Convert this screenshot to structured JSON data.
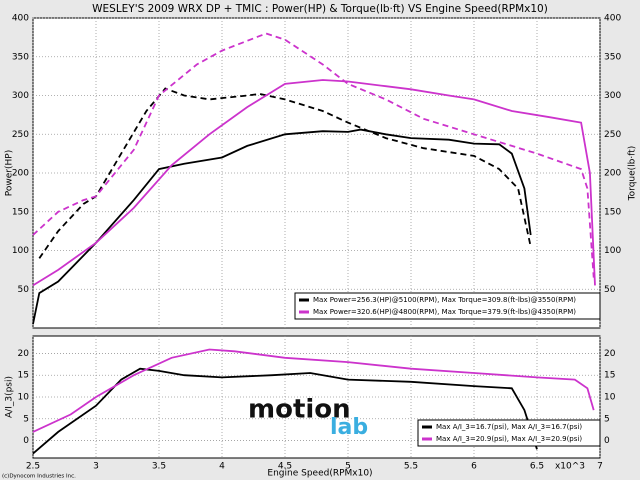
{
  "chart_data": [
    {
      "type": "line",
      "title": "WESLEY'S 2009 WRX DP + TMIC : Power(HP) & Torque(lb·ft) VS Engine Speed(RPMx10)",
      "ylabel": "Power(HP)",
      "y2label": "Torque(lb·ft)",
      "xlim": [
        2.5,
        7
      ],
      "xticks": [
        2.5,
        3,
        3.5,
        4,
        4.5,
        5,
        5.5,
        6,
        6.5,
        7
      ],
      "ylim": [
        0,
        400
      ],
      "yticks": [
        50,
        100,
        150,
        200,
        250,
        300,
        350,
        400
      ],
      "y2lim": [
        0,
        400
      ],
      "y2ticks": [
        50,
        100,
        150,
        200,
        250,
        300,
        350,
        400
      ],
      "grid": true,
      "legend": [
        {
          "label": "Max Power=256.3(HP)@5100(RPM), Max Torque=309.8(ft-lbs)@3550(RPM)",
          "color": "#000000"
        },
        {
          "label": "Max Power=320.6(HP)@4800(RPM), Max Torque=379.9(ft-lbs)@4350(RPM)",
          "color": "#cc33cc"
        }
      ],
      "series": [
        {
          "color": "#000000",
          "dash": false,
          "x": [
            2.5,
            2.55,
            2.7,
            3.0,
            3.3,
            3.5,
            3.7,
            4.0,
            4.2,
            4.5,
            4.8,
            5.0,
            5.1,
            5.3,
            5.5,
            5.8,
            6.0,
            6.2,
            6.3,
            6.4,
            6.45
          ],
          "values": [
            5,
            45,
            60,
            110,
            165,
            205,
            212,
            220,
            235,
            250,
            254,
            253,
            256,
            250,
            245,
            243,
            238,
            237,
            225,
            180,
            120
          ]
        },
        {
          "color": "#000000",
          "dash": true,
          "axis": "y2",
          "x": [
            2.55,
            2.7,
            2.9,
            3.0,
            3.2,
            3.4,
            3.55,
            3.7,
            3.9,
            4.2,
            4.3,
            4.5,
            4.8,
            5.0,
            5.3,
            5.6,
            6.0,
            6.2,
            6.35,
            6.45
          ],
          "values": [
            90,
            125,
            160,
            170,
            225,
            280,
            309,
            300,
            295,
            300,
            302,
            295,
            280,
            265,
            245,
            232,
            222,
            205,
            180,
            105
          ]
        },
        {
          "color": "#cc33cc",
          "dash": false,
          "x": [
            2.5,
            2.7,
            3.0,
            3.3,
            3.6,
            3.9,
            4.2,
            4.5,
            4.8,
            5.0,
            5.3,
            5.5,
            5.8,
            6.0,
            6.3,
            6.6,
            6.85,
            6.92,
            6.96
          ],
          "values": [
            55,
            75,
            110,
            155,
            210,
            250,
            285,
            315,
            320,
            318,
            312,
            308,
            300,
            295,
            280,
            272,
            265,
            200,
            55
          ]
        },
        {
          "color": "#cc33cc",
          "dash": true,
          "axis": "y2",
          "x": [
            2.5,
            2.7,
            2.9,
            3.0,
            3.3,
            3.5,
            3.8,
            4.0,
            4.35,
            4.5,
            4.8,
            5.0,
            5.3,
            5.6,
            6.0,
            6.5,
            6.85,
            6.9,
            6.95
          ],
          "values": [
            120,
            150,
            165,
            170,
            230,
            300,
            340,
            358,
            380,
            372,
            340,
            315,
            295,
            270,
            250,
            225,
            205,
            180,
            65
          ]
        }
      ]
    },
    {
      "type": "line",
      "ylabel": "A/I_3(psi)",
      "xlabel": "Engine Speed(RPMx10)",
      "xmultiplier": "x10^3",
      "xlim": [
        2.5,
        7
      ],
      "xticks": [
        2.5,
        3,
        3.5,
        4,
        4.5,
        5,
        5.5,
        6,
        6.5,
        7
      ],
      "ylim": [
        -4,
        24
      ],
      "yticks": [
        0,
        5,
        10,
        15,
        20
      ],
      "y2lim": [
        -4,
        24
      ],
      "y2ticks": [
        0,
        5,
        10,
        15,
        20
      ],
      "grid": true,
      "legend": [
        {
          "label": "Max A/I_3=16.7(psi), Max A/I_3=16.7(psi)",
          "color": "#000000"
        },
        {
          "label": "Max A/I_3=20.9(psi), Max A/I_3=20.9(psi)",
          "color": "#cc33cc"
        }
      ],
      "series": [
        {
          "color": "#000000",
          "dash": false,
          "x": [
            2.5,
            2.7,
            3.0,
            3.2,
            3.35,
            3.5,
            3.7,
            4.0,
            4.4,
            4.7,
            5.0,
            5.5,
            6.0,
            6.3,
            6.4,
            6.5
          ],
          "values": [
            -3,
            2,
            8,
            14,
            16.5,
            16,
            15,
            14.5,
            15,
            15.5,
            14,
            13.5,
            12.5,
            12,
            7,
            -2
          ]
        },
        {
          "color": "#cc33cc",
          "dash": false,
          "x": [
            2.5,
            2.8,
            3.0,
            3.3,
            3.6,
            3.9,
            4.1,
            4.5,
            5.0,
            5.5,
            6.0,
            6.5,
            6.8,
            6.9,
            6.95
          ],
          "values": [
            2,
            6,
            10,
            15,
            19,
            20.9,
            20.5,
            19,
            18,
            16.5,
            15.5,
            14.5,
            14,
            12,
            7
          ]
        }
      ]
    }
  ],
  "logo": [
    "motion",
    "lab"
  ],
  "copyright": "(c)Dynocom Industries Inc."
}
